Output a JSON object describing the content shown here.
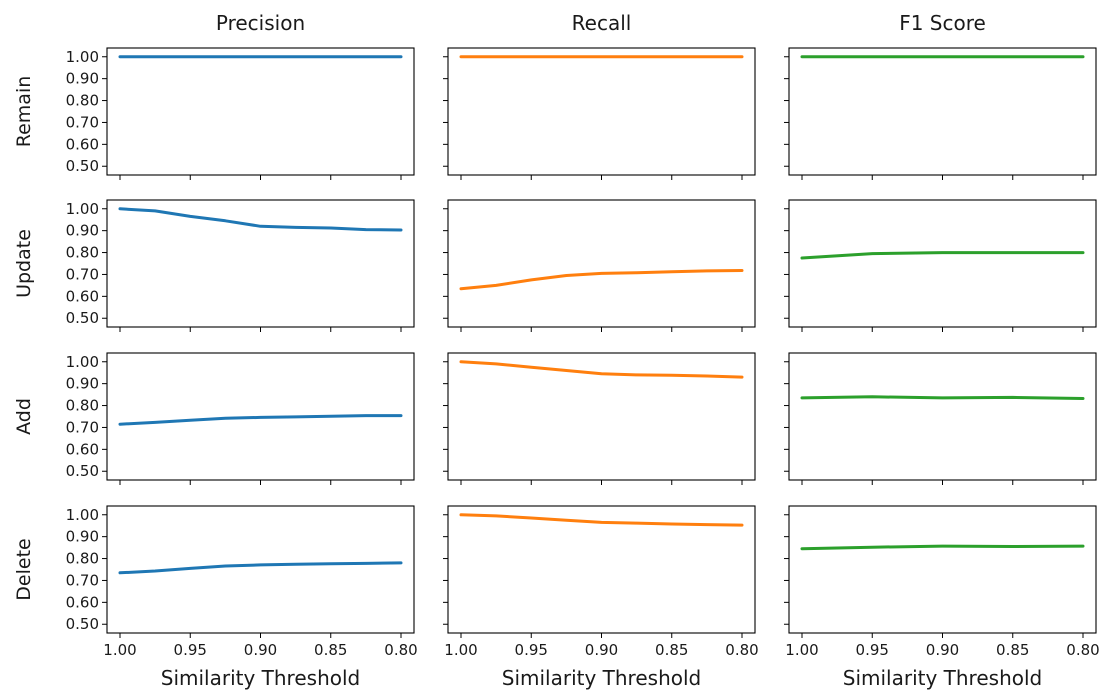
{
  "chart_data": {
    "type": "line",
    "layout": "grid 4 rows x 3 columns",
    "column_titles": [
      "Precision",
      "Recall",
      "F1 Score"
    ],
    "row_labels": [
      "Remain",
      "Update",
      "Add",
      "Delete"
    ],
    "xlabel": "Similarity Threshold",
    "x": [
      1.0,
      0.95,
      0.9,
      0.85,
      0.8
    ],
    "x_ticks": [
      "1.00",
      "0.95",
      "0.90",
      "0.85",
      "0.80"
    ],
    "x_reversed": true,
    "y_ticks": [
      "1.00",
      "0.90",
      "0.80",
      "0.70",
      "0.60",
      "0.50"
    ],
    "y_tick_values": [
      1.0,
      0.9,
      0.8,
      0.7,
      0.6,
      0.5
    ],
    "ylim": [
      0.46,
      1.04
    ],
    "grid": false,
    "colors": {
      "Precision": "#1f77b4",
      "Recall": "#ff7f0e",
      "F1 Score": "#2ca02c"
    },
    "panels": [
      {
        "row": "Remain",
        "metric": "Precision",
        "x": [
          1.0,
          0.95,
          0.9,
          0.85,
          0.8
        ],
        "values": [
          1.0,
          1.0,
          1.0,
          1.0,
          1.0
        ]
      },
      {
        "row": "Remain",
        "metric": "Recall",
        "x": [
          1.0,
          0.95,
          0.9,
          0.85,
          0.8
        ],
        "values": [
          1.0,
          1.0,
          1.0,
          1.0,
          1.0
        ]
      },
      {
        "row": "Remain",
        "metric": "F1 Score",
        "x": [
          1.0,
          0.95,
          0.9,
          0.85,
          0.8
        ],
        "values": [
          1.0,
          1.0,
          1.0,
          1.0,
          1.0
        ]
      },
      {
        "row": "Update",
        "metric": "Precision",
        "x": [
          1.0,
          0.975,
          0.95,
          0.925,
          0.9,
          0.875,
          0.85,
          0.825,
          0.8
        ],
        "values": [
          1.0,
          0.99,
          0.965,
          0.945,
          0.92,
          0.915,
          0.912,
          0.905,
          0.903
        ]
      },
      {
        "row": "Update",
        "metric": "Recall",
        "x": [
          1.0,
          0.975,
          0.95,
          0.925,
          0.9,
          0.875,
          0.85,
          0.825,
          0.8
        ],
        "values": [
          0.635,
          0.65,
          0.675,
          0.695,
          0.705,
          0.708,
          0.712,
          0.716,
          0.718
        ]
      },
      {
        "row": "Update",
        "metric": "F1 Score",
        "x": [
          1.0,
          0.95,
          0.9,
          0.85,
          0.8
        ],
        "values": [
          0.775,
          0.795,
          0.8,
          0.8,
          0.8
        ]
      },
      {
        "row": "Add",
        "metric": "Precision",
        "x": [
          1.0,
          0.975,
          0.95,
          0.925,
          0.9,
          0.875,
          0.85,
          0.825,
          0.8
        ],
        "values": [
          0.715,
          0.723,
          0.733,
          0.742,
          0.746,
          0.748,
          0.751,
          0.754,
          0.754
        ]
      },
      {
        "row": "Add",
        "metric": "Recall",
        "x": [
          1.0,
          0.975,
          0.95,
          0.925,
          0.9,
          0.875,
          0.85,
          0.825,
          0.8
        ],
        "values": [
          1.0,
          0.99,
          0.975,
          0.96,
          0.945,
          0.94,
          0.938,
          0.935,
          0.93
        ]
      },
      {
        "row": "Add",
        "metric": "F1 Score",
        "x": [
          1.0,
          0.95,
          0.9,
          0.85,
          0.8
        ],
        "values": [
          0.835,
          0.84,
          0.835,
          0.837,
          0.832
        ]
      },
      {
        "row": "Delete",
        "metric": "Precision",
        "x": [
          1.0,
          0.975,
          0.95,
          0.925,
          0.9,
          0.875,
          0.85,
          0.825,
          0.8
        ],
        "values": [
          0.735,
          0.743,
          0.755,
          0.766,
          0.771,
          0.774,
          0.776,
          0.778,
          0.78
        ]
      },
      {
        "row": "Delete",
        "metric": "Recall",
        "x": [
          1.0,
          0.975,
          0.95,
          0.925,
          0.9,
          0.875,
          0.85,
          0.825,
          0.8
        ],
        "values": [
          1.0,
          0.995,
          0.985,
          0.975,
          0.965,
          0.962,
          0.958,
          0.955,
          0.953
        ]
      },
      {
        "row": "Delete",
        "metric": "F1 Score",
        "x": [
          1.0,
          0.95,
          0.9,
          0.85,
          0.8
        ],
        "values": [
          0.845,
          0.852,
          0.857,
          0.855,
          0.857
        ]
      }
    ]
  }
}
